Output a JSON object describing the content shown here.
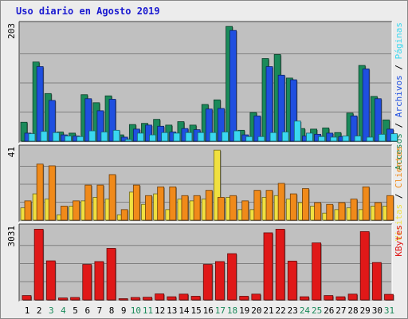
{
  "title": "Uso diario en Agosto 2019",
  "colors": {
    "accesos": "#1a8a5a",
    "archivos": "#1f4fe0",
    "paginas": "#3ad8f0",
    "visitas": "#f0e040",
    "clientes": "#f08a1a",
    "kbytes": "#e01818",
    "panel_bg": "#c0c0c0",
    "grid": "#808080",
    "day_weekday": "#000000",
    "day_weekend": "#1a8a5a"
  },
  "chart_data": [
    {
      "type": "bar",
      "panel": "top",
      "scale_label": "203",
      "ylim": [
        0,
        203
      ],
      "legend": [
        {
          "label": "Accesos",
          "color": "#1a8a5a"
        },
        {
          "label": "Archivos",
          "color": "#1f4fe0"
        },
        {
          "label": "Páginas",
          "color": "#3ad8f0"
        }
      ],
      "separator": " / ",
      "categories": [
        "1",
        "2",
        "3",
        "4",
        "5",
        "6",
        "7",
        "8",
        "9",
        "10",
        "11",
        "12",
        "13",
        "14",
        "15",
        "16",
        "17",
        "18",
        "19",
        "20",
        "21",
        "22",
        "23",
        "24",
        "25",
        "26",
        "27",
        "28",
        "29",
        "30",
        "31"
      ],
      "series": [
        {
          "name": "Accesos",
          "values": [
            33,
            138,
            83,
            16,
            14,
            81,
            67,
            79,
            11,
            29,
            31,
            38,
            28,
            34,
            28,
            64,
            72,
            200,
            19,
            50,
            144,
            151,
            110,
            22,
            21,
            23,
            15,
            49,
            132,
            78,
            37
          ]
        },
        {
          "name": "Archivos",
          "values": [
            14,
            130,
            71,
            11,
            9,
            74,
            53,
            73,
            7,
            21,
            28,
            26,
            16,
            22,
            20,
            56,
            57,
            193,
            11,
            44,
            130,
            115,
            107,
            9,
            12,
            14,
            8,
            44,
            126,
            74,
            21
          ]
        },
        {
          "name": "Páginas",
          "values": [
            13,
            17,
            15,
            9,
            8,
            18,
            16,
            19,
            3,
            14,
            11,
            15,
            14,
            15,
            15,
            15,
            16,
            18,
            8,
            8,
            15,
            16,
            35,
            14,
            8,
            7,
            9,
            9,
            7,
            12,
            13
          ]
        }
      ]
    },
    {
      "type": "bar",
      "panel": "middle",
      "scale_label": "41",
      "ylim": [
        0,
        41
      ],
      "legend": [
        {
          "label": "Visitas",
          "color": "#f0e040"
        },
        {
          "label": "Clientes",
          "color": "#f08a1a"
        }
      ],
      "separator": " / ",
      "categories": [
        "1",
        "2",
        "3",
        "4",
        "5",
        "6",
        "7",
        "8",
        "9",
        "10",
        "11",
        "12",
        "13",
        "14",
        "15",
        "16",
        "17",
        "18",
        "19",
        "20",
        "21",
        "22",
        "23",
        "24",
        "25",
        "26",
        "27",
        "28",
        "29",
        "30",
        "31"
      ],
      "series": [
        {
          "name": "Visitas",
          "values": [
            7,
            15,
            12,
            3,
            8,
            11,
            13,
            12,
            3,
            16,
            9,
            15,
            6,
            12,
            11,
            12,
            40,
            13,
            6,
            6,
            13,
            14,
            12,
            10,
            8,
            4,
            6,
            7,
            6,
            8,
            8
          ]
        },
        {
          "name": "Clientes",
          "values": [
            11,
            32,
            31,
            8,
            11,
            20,
            20,
            26,
            6,
            20,
            14,
            19,
            19,
            14,
            14,
            17,
            13,
            14,
            11,
            17,
            17,
            21,
            15,
            18,
            10,
            9,
            10,
            12,
            19,
            10,
            14
          ]
        }
      ]
    },
    {
      "type": "bar",
      "panel": "bottom",
      "scale_label": "3031",
      "ylim": [
        0,
        3031
      ],
      "legend": [
        {
          "label": "KBytes",
          "color": "#e01818"
        }
      ],
      "categories": [
        "1",
        "2",
        "3",
        "4",
        "5",
        "6",
        "7",
        "8",
        "9",
        "10",
        "11",
        "12",
        "13",
        "14",
        "15",
        "16",
        "17",
        "18",
        "19",
        "20",
        "21",
        "22",
        "23",
        "24",
        "25",
        "26",
        "27",
        "28",
        "29",
        "30",
        "31"
      ],
      "series": [
        {
          "name": "KBytes",
          "values": [
            180,
            2950,
            1630,
            80,
            100,
            1480,
            1600,
            2150,
            50,
            100,
            110,
            250,
            130,
            240,
            150,
            1480,
            1600,
            1930,
            150,
            240,
            2800,
            2950,
            1620,
            130,
            2380,
            180,
            130,
            240,
            2850,
            1560,
            230
          ]
        }
      ]
    }
  ],
  "days": [
    "1",
    "2",
    "3",
    "4",
    "5",
    "6",
    "7",
    "8",
    "9",
    "10",
    "11",
    "12",
    "13",
    "14",
    "15",
    "16",
    "17",
    "18",
    "19",
    "20",
    "21",
    "22",
    "23",
    "24",
    "25",
    "26",
    "27",
    "28",
    "29",
    "30",
    "31"
  ],
  "weekend_days": [
    "3",
    "4",
    "10",
    "11",
    "17",
    "18",
    "24",
    "25",
    "31"
  ]
}
